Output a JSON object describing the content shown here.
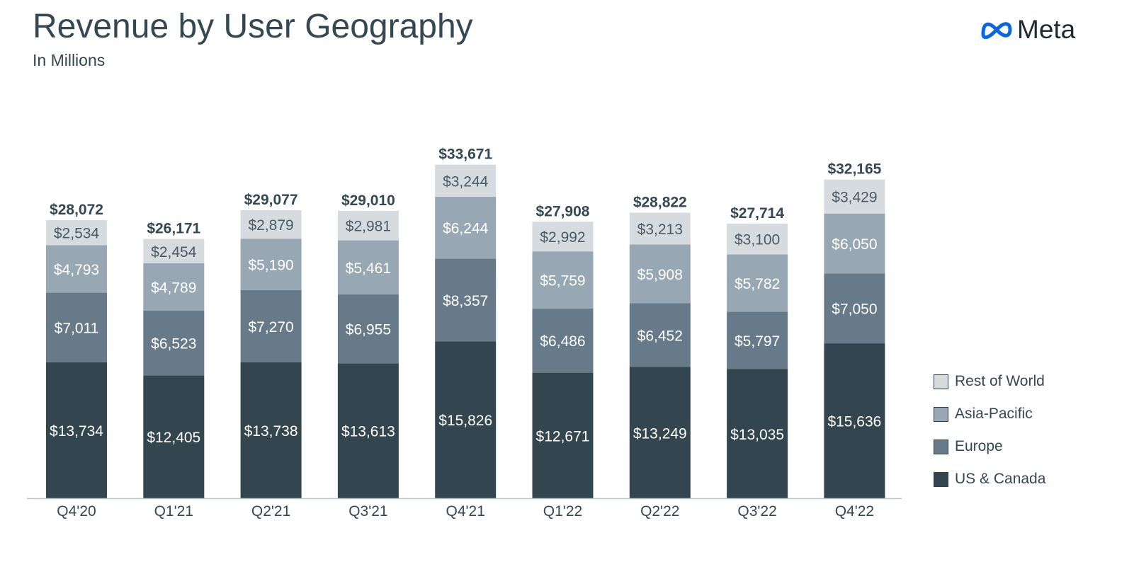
{
  "header": {
    "title": "Revenue by User Geography",
    "subtitle": "In Millions",
    "logo_text": "Meta"
  },
  "chart_data": {
    "type": "bar",
    "stacked": true,
    "categories": [
      "Q4'20",
      "Q1'21",
      "Q2'21",
      "Q3'21",
      "Q4'21",
      "Q1'22",
      "Q2'22",
      "Q3'22",
      "Q4'22"
    ],
    "series": [
      {
        "name": "US & Canada",
        "color": "#33464f",
        "text_color": "#ffffff",
        "values": [
          13734,
          12405,
          13738,
          13613,
          15826,
          12671,
          13249,
          13035,
          15636
        ],
        "labels": [
          "$13,734",
          "$12,405",
          "$13,738",
          "$13,613",
          "$15,826",
          "$12,671",
          "$13,249",
          "$13,035",
          "$15,636"
        ]
      },
      {
        "name": "Europe",
        "color": "#677a89",
        "text_color": "#ffffff",
        "values": [
          7011,
          6523,
          7270,
          6955,
          8357,
          6486,
          6452,
          5797,
          7050
        ],
        "labels": [
          "$7,011",
          "$6,523",
          "$7,270",
          "$6,955",
          "$8,357",
          "$6,486",
          "$6,452",
          "$5,797",
          "$7,050"
        ]
      },
      {
        "name": "Asia-Pacific",
        "color": "#97a7b3",
        "text_color": "#ffffff",
        "values": [
          4793,
          4789,
          5190,
          5461,
          6244,
          5759,
          5908,
          5782,
          6050
        ],
        "labels": [
          "$4,793",
          "$4,789",
          "$5,190",
          "$5,461",
          "$6,244",
          "$5,759",
          "$5,908",
          "$5,782",
          "$6,050"
        ]
      },
      {
        "name": "Rest of World",
        "color": "#d5dbde",
        "text_color": "#4a5b66",
        "values": [
          2534,
          2454,
          2879,
          2981,
          3244,
          2992,
          3213,
          3100,
          3429
        ],
        "labels": [
          "$2,534",
          "$2,454",
          "$2,879",
          "$2,981",
          "$3,244",
          "$2,992",
          "$3,213",
          "$3,100",
          "$3,429"
        ]
      }
    ],
    "totals": [
      28072,
      26171,
      29077,
      29010,
      33671,
      27908,
      28822,
      27714,
      32165
    ],
    "total_labels": [
      "$28,072",
      "$26,171",
      "$29,077",
      "$29,010",
      "$33,671",
      "$27,908",
      "$28,822",
      "$27,714",
      "$32,165"
    ],
    "legend": [
      "Rest of World",
      "Asia-Pacific",
      "Europe",
      "US & Canada"
    ],
    "legend_placement": "right",
    "ylim": [
      0,
      34000
    ],
    "grid": false,
    "axis_color": "#b9c3c9",
    "total_label_color": "#344854"
  }
}
